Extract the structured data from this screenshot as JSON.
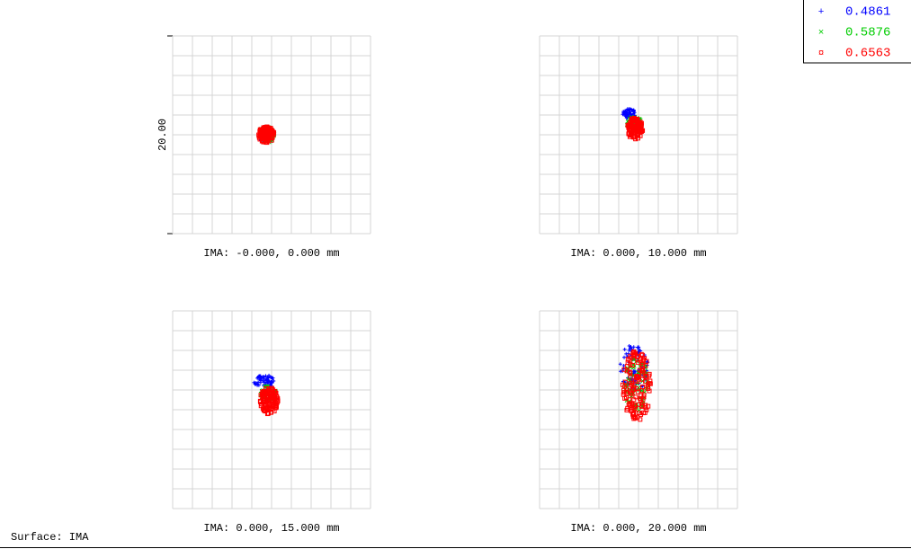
{
  "legend": [
    {
      "symbol": "+",
      "label": "0.4861"
    },
    {
      "symbol": "×",
      "label": "0.5876"
    },
    {
      "symbol": "¤",
      "label": "0.6563"
    }
  ],
  "scale_label": "20.00",
  "panels": [
    {
      "label": "IMA: -0.000, 0.000 mm"
    },
    {
      "label": "IMA: 0.000, 10.000 mm"
    },
    {
      "label": "IMA: 0.000, 15.000 mm"
    },
    {
      "label": "IMA: 0.000, 20.000 mm"
    }
  ],
  "footer": "Surface: IMA"
}
